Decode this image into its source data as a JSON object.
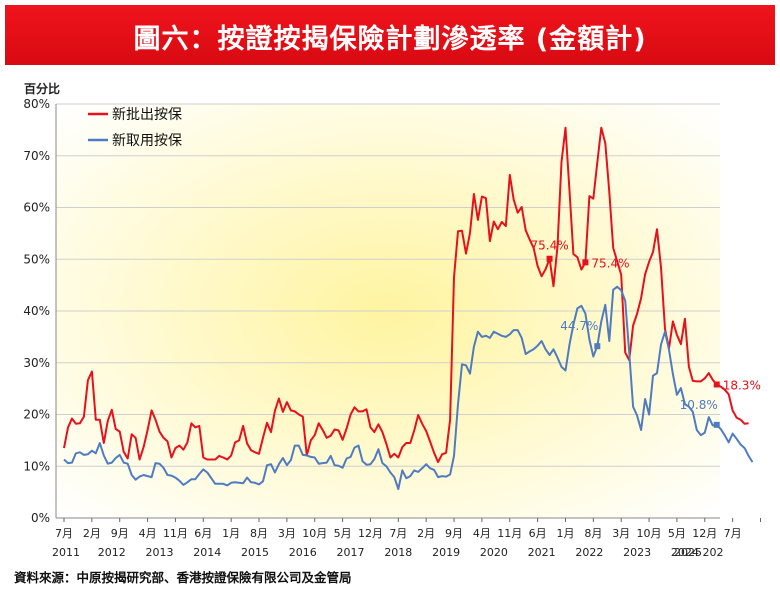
{
  "page": {
    "title": "圖六：按證按揭保險計劃滲透率 (金額計)",
    "source": "資料來源：中原按揭研究部、香港按證保險有限公司及金管局"
  },
  "colors": {
    "title_bg": "#e8101a",
    "red_series": "#e8101a",
    "blue_series": "#4f7cc0",
    "plot_bg_center": "#fff6b0",
    "plot_bg_edge": "#ffffff"
  },
  "chart_data": {
    "type": "line",
    "ylabel": "百分比",
    "ylim": [
      0,
      80
    ],
    "y_ticks": [
      "0%",
      "10%",
      "20%",
      "30%",
      "40%",
      "50%",
      "60%",
      "70%",
      "80%"
    ],
    "grid": true,
    "legend": "top-left",
    "x_month_ticks": [
      "7月",
      "2月",
      "9月",
      "4月",
      "11月",
      "6月",
      "1月",
      "8月",
      "3月",
      "10月",
      "5月",
      "12月",
      "7月",
      "2月",
      "9月",
      "4月",
      "11月",
      "6月",
      "1月",
      "8月",
      "3月",
      "10月",
      "5月",
      "12月",
      "7月",
      ""
    ],
    "x_year_labels": [
      "2011",
      "2012",
      "2013",
      "2014",
      "2015",
      "2016",
      "2017",
      "2018",
      "2019",
      "2020",
      "2021",
      "2022",
      "2023",
      "2024",
      "2025",
      "202"
    ],
    "series": [
      {
        "name": "新批出按保",
        "color": "#e8101a",
        "values": [
          13.5,
          17.5,
          19.2,
          18.2,
          18.3,
          19.6,
          26.6,
          28.3,
          19.0,
          19.0,
          14.5,
          18.8,
          20.9,
          17.2,
          16.7,
          12.8,
          11.5,
          16.2,
          15.5,
          11.3,
          13.7,
          17.0,
          20.8,
          19.0,
          16.7,
          15.5,
          14.8,
          11.7,
          13.5,
          14.0,
          13.2,
          14.6,
          18.3,
          17.5,
          17.8,
          11.7,
          11.3,
          11.3,
          11.3,
          12.0,
          11.7,
          11.3,
          12.1,
          14.6,
          15.0,
          17.8,
          14.4,
          13.1,
          12.7,
          12.4,
          15.5,
          18.4,
          16.6,
          20.7,
          23.1,
          20.5,
          22.4,
          20.8,
          20.6,
          20.0,
          19.6,
          12.1,
          15.0,
          16.0,
          18.3,
          17.0,
          15.5,
          15.9,
          17.1,
          16.9,
          15.1,
          17.3,
          20.0,
          21.4,
          20.6,
          20.6,
          21.0,
          17.5,
          16.6,
          18.1,
          16.6,
          14.3,
          11.7,
          12.4,
          11.7,
          13.7,
          14.5,
          14.5,
          16.9,
          19.9,
          18.2,
          16.8,
          14.7,
          12.6,
          10.8,
          12.3,
          12.6,
          19.0,
          46.5,
          55.4,
          55.5,
          51.1,
          55.1,
          62.6,
          57.6,
          62.1,
          61.8,
          53.5,
          57.3,
          55.8,
          57.2,
          56.4,
          66.3,
          61.5,
          59.0,
          60.1,
          55.6,
          53.8,
          52.2,
          48.7,
          46.7,
          48.1,
          50.1,
          44.8,
          52.5,
          68.8,
          75.4,
          63.2,
          51.0,
          50.4,
          48.0,
          49.4,
          62.2,
          61.7,
          68.7,
          75.4,
          72.4,
          63.0,
          52.2,
          49.6,
          47.0,
          32.0,
          30.5,
          37.2,
          39.5,
          42.5,
          47.1,
          49.5,
          51.4,
          55.8,
          48.4,
          36.5,
          32.8,
          38.0,
          35.4,
          33.6,
          38.5,
          29.2,
          26.5,
          26.4,
          26.4,
          27.0,
          28.0,
          26.7,
          25.8,
          25.4,
          24.8,
          23.9,
          20.8,
          19.4,
          19.0,
          18.2,
          18.3
        ],
        "annotations": [
          {
            "label": "75.4%",
            "index": 122
          },
          {
            "label": "75.4%",
            "index": 131
          },
          {
            "label": "18.3%",
            "index": 164
          }
        ]
      },
      {
        "name": "新取用按保",
        "color": "#4f7cc0",
        "values": [
          11.3,
          10.6,
          10.7,
          12.5,
          12.7,
          12.2,
          12.3,
          13.0,
          12.5,
          14.5,
          12.1,
          10.5,
          10.7,
          11.6,
          12.2,
          10.7,
          10.5,
          8.3,
          7.4,
          8.0,
          8.3,
          8.1,
          7.9,
          10.6,
          10.5,
          9.7,
          8.3,
          8.2,
          7.8,
          7.2,
          6.4,
          6.9,
          7.5,
          7.5,
          8.5,
          9.4,
          8.8,
          7.7,
          6.6,
          6.6,
          6.6,
          6.3,
          6.8,
          6.9,
          6.8,
          6.7,
          7.8,
          6.9,
          6.8,
          6.5,
          7.1,
          10.2,
          10.4,
          8.8,
          10.4,
          11.6,
          10.2,
          11.2,
          14.0,
          14.0,
          12.2,
          12.1,
          11.8,
          11.7,
          10.5,
          10.6,
          10.7,
          12.0,
          10.2,
          10.1,
          9.7,
          11.5,
          11.8,
          13.6,
          14.0,
          11.0,
          10.3,
          10.4,
          11.4,
          13.3,
          10.6,
          10.0,
          8.8,
          7.9,
          5.6,
          9.2,
          7.7,
          8.1,
          9.2,
          8.9,
          9.6,
          10.4,
          9.6,
          9.3,
          7.9,
          8.1,
          8.0,
          8.4,
          12.0,
          22.0,
          29.7,
          29.5,
          27.9,
          33.1,
          36.0,
          35.0,
          35.2,
          34.8,
          36.0,
          35.6,
          35.2,
          35.0,
          35.5,
          36.3,
          36.3,
          34.8,
          31.7,
          32.2,
          32.6,
          33.3,
          34.2,
          32.6,
          31.5,
          32.6,
          31.0,
          29.2,
          28.5,
          33.5,
          37.4,
          40.5,
          41.0,
          39.5,
          34.5,
          31.2,
          33.2,
          38.0,
          41.2,
          34.2,
          44.1,
          44.7,
          44.0,
          42.0,
          32.0,
          21.5,
          19.8,
          17.0,
          23.0,
          20.0,
          27.5,
          28.0,
          33.5,
          36.0,
          32.5,
          27.8,
          23.8,
          25.1,
          22.0,
          21.5,
          20.5,
          17.0,
          16.0,
          16.5,
          19.5,
          17.9,
          18.0,
          17.2,
          16.0,
          14.6,
          16.3,
          15.3,
          14.2,
          13.5,
          12.0,
          10.8
        ],
        "annotations": [
          {
            "label": "44.7%",
            "index": 134
          },
          {
            "label": "10.8%",
            "index": 164
          }
        ]
      }
    ]
  }
}
